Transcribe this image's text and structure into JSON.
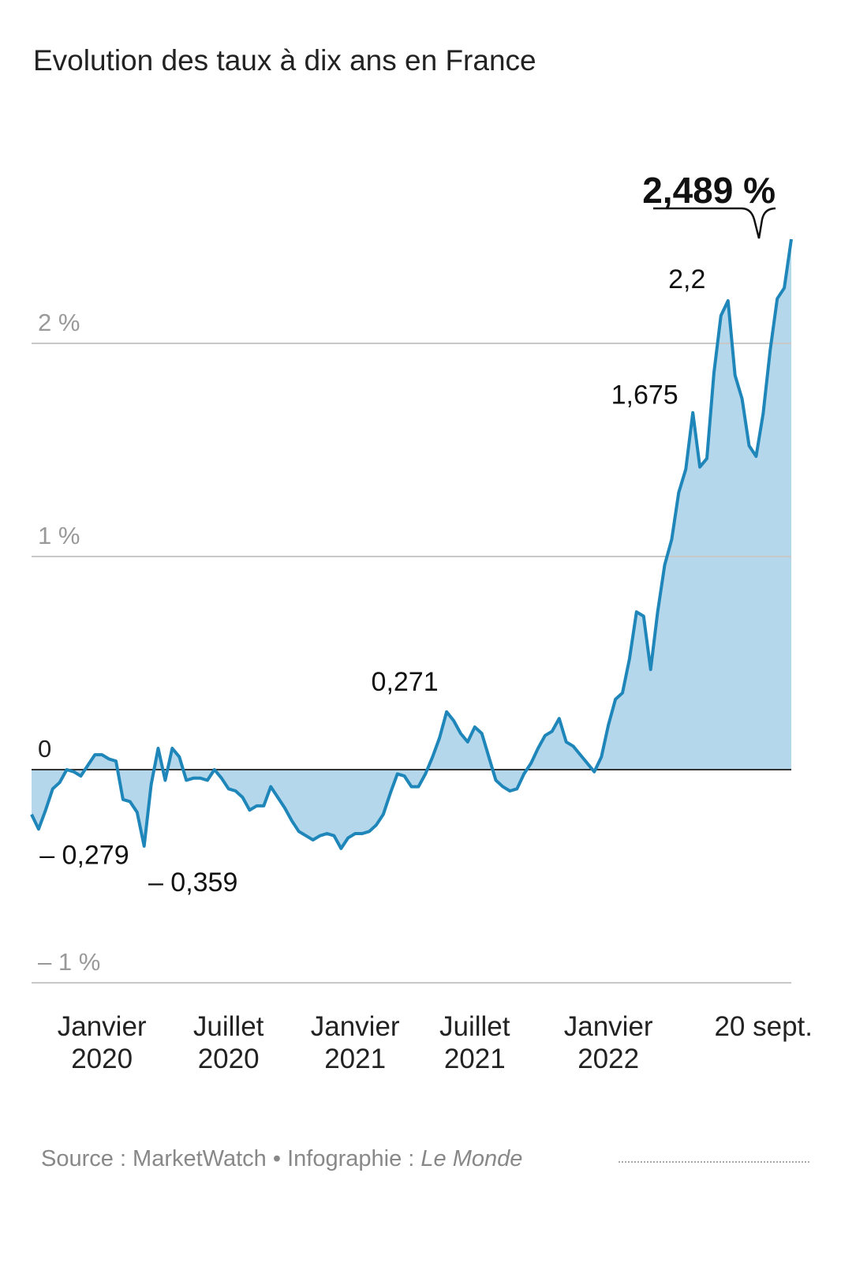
{
  "chart_data": {
    "type": "area",
    "title": "Evolution des taux à dix ans en France",
    "categories": [
      null,
      null,
      null,
      null,
      null,
      null,
      null,
      null,
      null,
      null,
      "Janvier 2020",
      null,
      null,
      null,
      null,
      null,
      null,
      null,
      null,
      null,
      null,
      null,
      null,
      null,
      null,
      null,
      null,
      null,
      "Juillet 2020",
      null,
      null,
      null,
      null,
      null,
      null,
      null,
      null,
      null,
      null,
      null,
      null,
      null,
      null,
      null,
      null,
      null,
      "Janvier 2021",
      null,
      null,
      null,
      null,
      null,
      null,
      null,
      null,
      null,
      null,
      null,
      null,
      null,
      null,
      null,
      null,
      "Juillet 2021",
      null,
      null,
      null,
      null,
      null,
      null,
      null,
      null,
      null,
      null,
      null,
      null,
      null,
      null,
      null,
      null,
      null,
      null,
      "Janvier 2022",
      null,
      null,
      null,
      null,
      null,
      null,
      null,
      null,
      null,
      null,
      null,
      null,
      null,
      null,
      null,
      null,
      null,
      null,
      null,
      null,
      null,
      null,
      null,
      null,
      null,
      "20 sept."
    ],
    "values": [
      -0.21,
      -0.279,
      -0.19,
      -0.09,
      -0.06,
      0.0,
      -0.01,
      -0.03,
      0.02,
      0.07,
      0.07,
      0.05,
      0.04,
      -0.14,
      -0.15,
      -0.2,
      -0.359,
      -0.07,
      0.1,
      -0.05,
      0.1,
      0.06,
      -0.05,
      -0.04,
      -0.04,
      -0.05,
      0.0,
      -0.04,
      -0.09,
      -0.1,
      -0.13,
      -0.19,
      -0.17,
      -0.17,
      -0.08,
      -0.13,
      -0.18,
      -0.24,
      -0.29,
      -0.31,
      -0.33,
      -0.31,
      -0.3,
      -0.31,
      -0.37,
      -0.32,
      -0.3,
      -0.3,
      -0.29,
      -0.26,
      -0.21,
      -0.11,
      -0.02,
      -0.03,
      -0.08,
      -0.08,
      -0.02,
      0.06,
      0.15,
      0.271,
      0.23,
      0.17,
      0.13,
      0.2,
      0.17,
      0.06,
      -0.05,
      -0.08,
      -0.1,
      -0.09,
      -0.02,
      0.03,
      0.1,
      0.16,
      0.18,
      0.24,
      0.13,
      0.11,
      0.07,
      0.03,
      -0.01,
      0.06,
      0.21,
      0.33,
      0.36,
      0.52,
      0.74,
      0.72,
      0.47,
      0.74,
      0.96,
      1.08,
      1.3,
      1.41,
      1.675,
      1.42,
      1.46,
      1.86,
      2.13,
      2.2,
      1.85,
      1.74,
      1.52,
      1.47,
      1.67,
      1.97,
      2.21,
      2.26,
      2.489
    ],
    "value_labels": [
      null,
      "– 0,279",
      null,
      null,
      null,
      null,
      null,
      null,
      null,
      null,
      null,
      null,
      null,
      null,
      null,
      null,
      "– 0,359",
      null,
      null,
      null,
      null,
      null,
      null,
      null,
      null,
      null,
      null,
      null,
      null,
      null,
      null,
      null,
      null,
      null,
      null,
      null,
      null,
      null,
      null,
      null,
      null,
      null,
      null,
      null,
      null,
      null,
      null,
      null,
      null,
      null,
      null,
      null,
      null,
      null,
      null,
      null,
      null,
      null,
      null,
      "0,271",
      null,
      null,
      null,
      null,
      null,
      null,
      null,
      null,
      null,
      null,
      null,
      null,
      null,
      null,
      null,
      null,
      null,
      null,
      null,
      null,
      null,
      null,
      null,
      null,
      null,
      null,
      null,
      null,
      null,
      null,
      null,
      null,
      null,
      null,
      "1,675",
      null,
      null,
      null,
      null,
      "2,2",
      null,
      null,
      null,
      null,
      null,
      null,
      null,
      null,
      "2,489 %"
    ],
    "color": "#1f86ba",
    "fill_color": "#b5d7eb",
    "ylim": [
      -1,
      2.5
    ],
    "yticks": [
      {
        "value": -1,
        "label": "– 1 %"
      },
      0,
      {
        "value": 1,
        "label": "1 %"
      },
      {
        "value": 2,
        "label": "2 %"
      }
    ],
    "grid": true
  },
  "footer": {
    "source": "Source : MarketWatch •",
    "credit": "Infographie :",
    "credit_name": "Le Monde"
  }
}
